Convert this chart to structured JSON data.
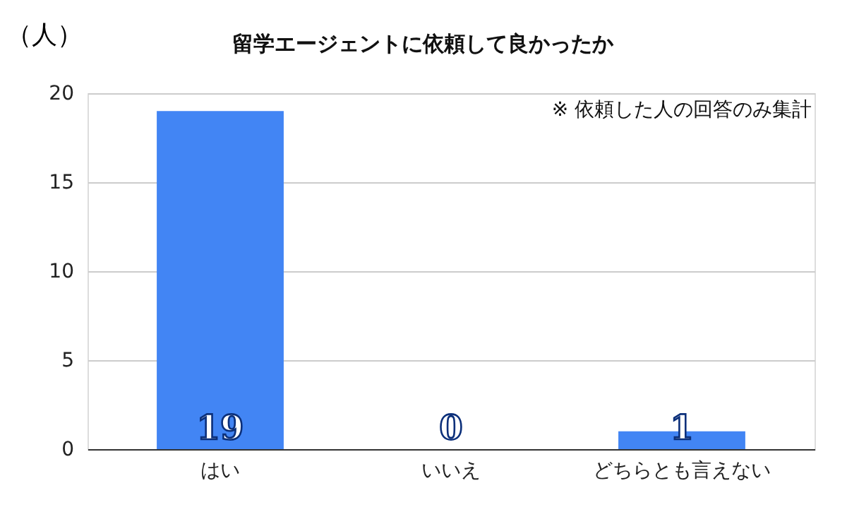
{
  "chart_data": {
    "type": "bar",
    "title": "留学エージェントに依頼して良かったか",
    "ylabel": "（人）",
    "categories": [
      "はい",
      "いいえ",
      "どちらとも言えない"
    ],
    "values": [
      19,
      0,
      1
    ],
    "color": "#4285f4",
    "ylim": [
      0,
      20
    ],
    "yticks": [
      0,
      5,
      10,
      15,
      20
    ],
    "grid": "y",
    "data_labels": true,
    "annotations": [
      "※ 依頼した人の回答のみ集計"
    ]
  }
}
